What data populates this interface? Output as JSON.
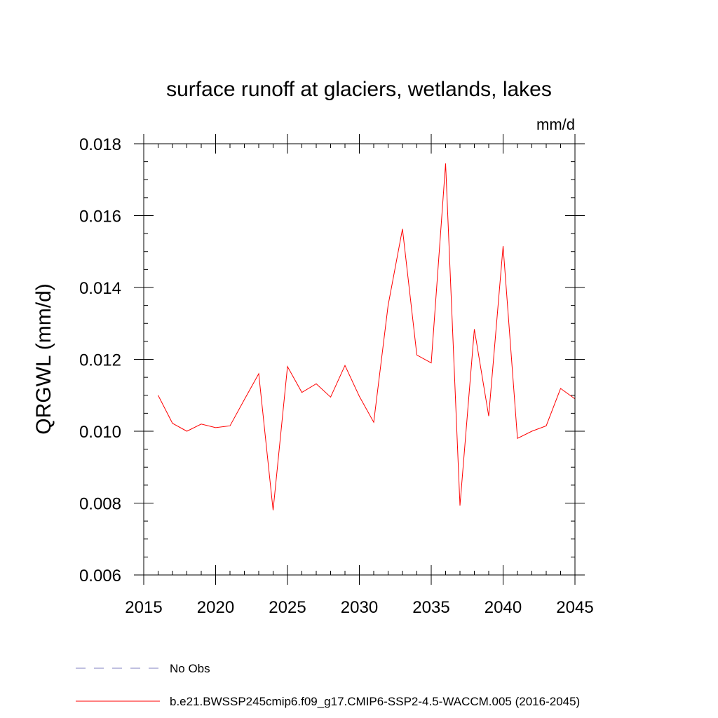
{
  "chart_data": {
    "type": "line",
    "title": "surface runoff at glaciers, wetlands, lakes",
    "units": "mm/d",
    "ylabel": "QRGWL  (mm/d)",
    "xlabel": "",
    "xlim": [
      2015,
      2045
    ],
    "ylim": [
      0.006,
      0.018
    ],
    "x_ticks": [
      2015,
      2020,
      2025,
      2030,
      2035,
      2040,
      2045
    ],
    "x_tick_labels": [
      "2015",
      "2020",
      "2025",
      "2030",
      "2035",
      "2040",
      "2045"
    ],
    "y_ticks": [
      0.006,
      0.008,
      0.01,
      0.012,
      0.014,
      0.016,
      0.018
    ],
    "y_tick_labels": [
      "0.006",
      "0.008",
      "0.010",
      "0.012",
      "0.014",
      "0.016",
      "0.018"
    ],
    "x_minor_step": 1,
    "y_minor_step": 0.0005,
    "grid": false,
    "legend_position": "bottom",
    "colors": {
      "series": "#ff0000",
      "obs": "#8080c0",
      "axis": "#000000"
    },
    "x": [
      2016,
      2017,
      2018,
      2019,
      2020,
      2021,
      2022,
      2023,
      2024,
      2025,
      2026,
      2027,
      2028,
      2029,
      2030,
      2031,
      2032,
      2033,
      2034,
      2035,
      2036,
      2037,
      2038,
      2039,
      2040,
      2041,
      2042,
      2043,
      2044,
      2045
    ],
    "series": [
      {
        "name": "b.e21.BWSSP245cmip6.f09_g17.CMIP6-SSP2-4.5-WACCM.005 (2016-2045)",
        "values": [
          0.011,
          0.01022,
          0.01,
          0.0102,
          0.0101,
          0.01015,
          0.01088,
          0.0116,
          0.0078,
          0.0118,
          0.01108,
          0.01132,
          0.01095,
          0.01183,
          0.01097,
          0.01025,
          0.0135,
          0.01563,
          0.01212,
          0.0119,
          0.01745,
          0.00793,
          0.01284,
          0.01042,
          0.01515,
          0.0098,
          0.01,
          0.01015,
          0.01119,
          0.0109
        ]
      }
    ],
    "legend": [
      {
        "label": "No Obs",
        "style": "dashed"
      },
      {
        "label": "b.e21.BWSSP245cmip6.f09_g17.CMIP6-SSP2-4.5-WACCM.005 (2016-2045)",
        "style": "solid"
      }
    ]
  }
}
